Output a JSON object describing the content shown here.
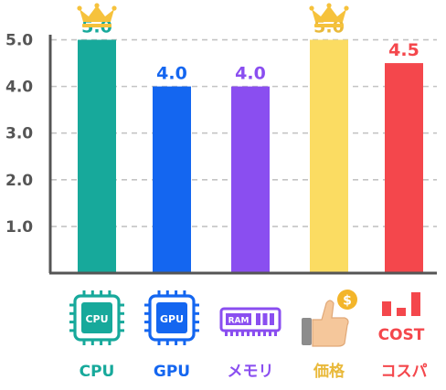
{
  "chart_data": {
    "type": "bar",
    "categories": [
      "CPU",
      "GPU",
      "メモリ",
      "価格",
      "コスパ"
    ],
    "values": [
      5.0,
      4.0,
      4.0,
      5.0,
      4.5
    ],
    "value_labels": [
      "5.0",
      "4.0",
      "4.0",
      "5.0",
      "4.5"
    ],
    "colors": [
      "#17a99b",
      "#1466f0",
      "#8a4ef0",
      "#fbdc62",
      "#f4474c"
    ],
    "label_colors": [
      "#17a99b",
      "#1466f0",
      "#8a4ef0",
      "#e9b93a",
      "#f4474c"
    ],
    "crowned": [
      true,
      false,
      false,
      true,
      false
    ],
    "icons": [
      "cpu-chip-icon",
      "gpu-chip-icon",
      "ram-module-icon",
      "thumbs-up-coin-icon",
      "cost-bars-icon"
    ],
    "icon_texts": [
      "CPU",
      "GPU",
      "RAM",
      "$",
      "COST"
    ],
    "yticks": [
      1.0,
      2.0,
      3.0,
      4.0,
      5.0
    ],
    "ytick_labels": [
      "1.0",
      "2.0",
      "3.0",
      "4.0",
      "5.0"
    ],
    "ylim": [
      0,
      5.5
    ],
    "grid": true,
    "xlabel": "",
    "ylabel": "",
    "title": ""
  }
}
